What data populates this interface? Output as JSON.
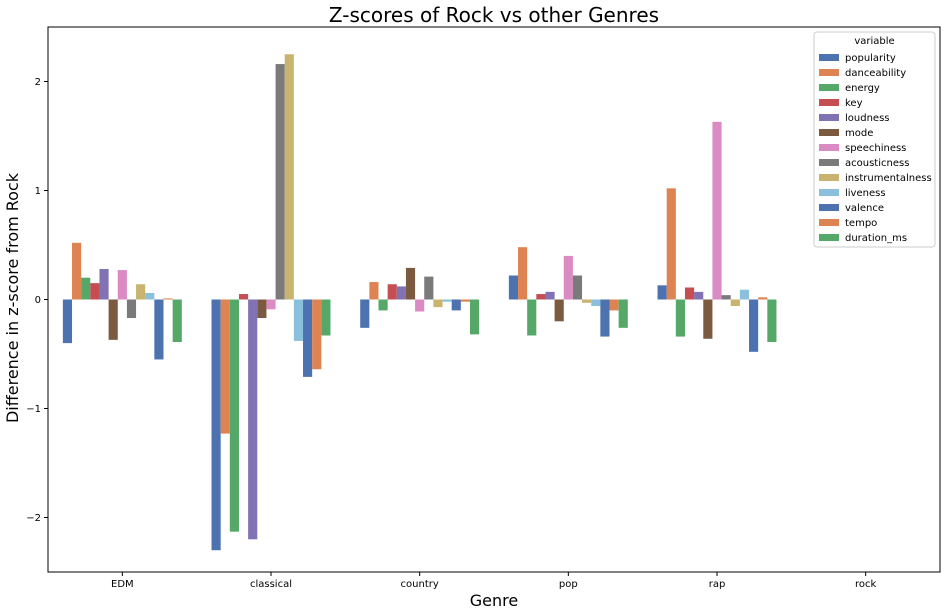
{
  "chart_data": {
    "type": "bar",
    "title": "Z-scores of Rock vs other Genres",
    "xlabel": "Genre",
    "ylabel": "Difference in z-score from Rock",
    "categories": [
      "EDM",
      "classical",
      "country",
      "pop",
      "rap",
      "rock"
    ],
    "ylim": [
      -2.5,
      2.5
    ],
    "yticks": [
      -2,
      -1,
      0,
      1,
      2
    ],
    "ytick_labels": [
      "−2",
      "−1",
      "0",
      "1",
      "2"
    ],
    "grid": false,
    "legend": {
      "title": "variable",
      "placement": "top-right"
    },
    "series": [
      {
        "name": "popularity",
        "color": "#4c72b0",
        "values": [
          -0.4,
          -2.3,
          -0.26,
          0.22,
          0.13,
          0
        ]
      },
      {
        "name": "danceability",
        "color": "#dd8452",
        "values": [
          0.52,
          -1.23,
          0.16,
          0.48,
          1.02,
          0
        ]
      },
      {
        "name": "energy",
        "color": "#55a868",
        "values": [
          0.2,
          -2.13,
          -0.1,
          -0.33,
          -0.34,
          0
        ]
      },
      {
        "name": "key",
        "color": "#c44e52",
        "values": [
          0.15,
          0.05,
          0.14,
          0.05,
          0.11,
          0
        ]
      },
      {
        "name": "loudness",
        "color": "#8172b3",
        "values": [
          0.28,
          -2.2,
          0.12,
          0.07,
          0.07,
          0
        ]
      },
      {
        "name": "mode",
        "color": "#7b5a3f",
        "values": [
          -0.37,
          -0.17,
          0.29,
          -0.2,
          -0.36,
          0
        ]
      },
      {
        "name": "speechiness",
        "color": "#da8bc3",
        "values": [
          0.27,
          -0.09,
          -0.11,
          0.4,
          1.63,
          0
        ]
      },
      {
        "name": "acousticness",
        "color": "#7a7a7a",
        "values": [
          -0.17,
          2.16,
          0.21,
          0.22,
          0.04,
          0
        ]
      },
      {
        "name": "instrumentalness",
        "color": "#c8b46e",
        "values": [
          0.14,
          2.25,
          -0.07,
          -0.03,
          -0.06,
          0
        ]
      },
      {
        "name": "liveness",
        "color": "#8bc0dc",
        "values": [
          0.06,
          -0.38,
          -0.02,
          -0.06,
          0.09,
          0
        ]
      },
      {
        "name": "valence",
        "color": "#4c72b0",
        "values": [
          -0.55,
          -0.71,
          -0.1,
          -0.34,
          -0.48,
          0
        ]
      },
      {
        "name": "tempo",
        "color": "#dd8452",
        "values": [
          0.01,
          -0.64,
          -0.02,
          -0.1,
          0.02,
          0
        ]
      },
      {
        "name": "duration_ms",
        "color": "#55a868",
        "values": [
          -0.39,
          -0.33,
          -0.32,
          -0.26,
          -0.39,
          0
        ]
      }
    ]
  }
}
